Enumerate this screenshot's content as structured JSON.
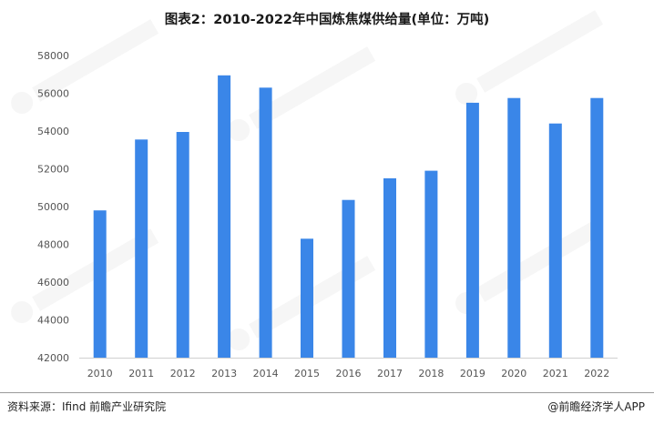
{
  "title": "图表2：2010-2022年中国炼焦煤供给量(单位：万吨)",
  "colors": {
    "bar": "#3a86e8",
    "axis": "#d0d0d0",
    "text": "#555555"
  },
  "chart_data": {
    "type": "bar",
    "title": "图表2：2010-2022年中国炼焦煤供给量(单位：万吨)",
    "xlabel": "",
    "ylabel": "",
    "ylim": [
      42000,
      58000
    ],
    "yticks": [
      42000,
      44000,
      46000,
      48000,
      50000,
      52000,
      54000,
      56000,
      58000
    ],
    "grid": false,
    "legend": "none",
    "categories": [
      "2010",
      "2011",
      "2012",
      "2013",
      "2014",
      "2015",
      "2016",
      "2017",
      "2018",
      "2019",
      "2020",
      "2021",
      "2022"
    ],
    "values": [
      49800,
      53550,
      53950,
      56950,
      56300,
      48300,
      50350,
      51500,
      51900,
      55500,
      55750,
      54400,
      55750
    ]
  },
  "footer": {
    "source": "资料来源：Ifind 前瞻产业研究院",
    "brand": "@前瞻经济学人APP"
  }
}
